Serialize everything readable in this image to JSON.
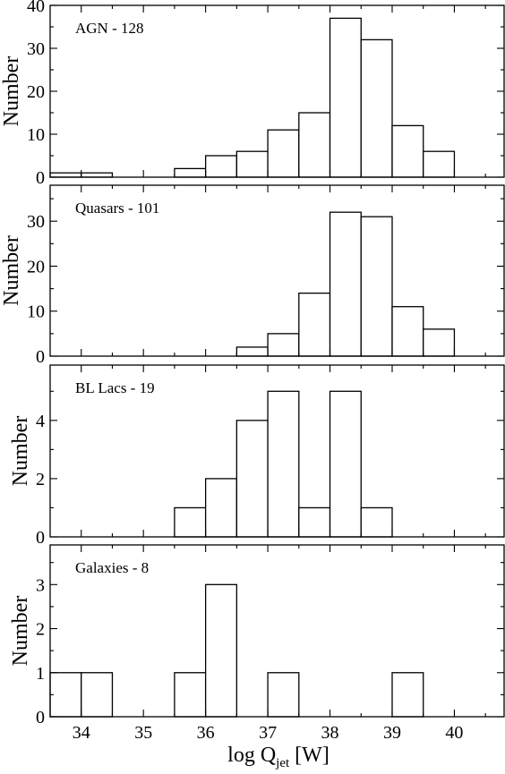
{
  "chart_data": [
    {
      "type": "bar",
      "annotation": "AGN - 128",
      "ylabel": "Number",
      "xlim": [
        33.5,
        40.8
      ],
      "ylim": [
        0,
        40
      ],
      "yticks": [
        0,
        10,
        20,
        30,
        40
      ],
      "bin_width": 0.5,
      "bins": [
        {
          "x0": 33.5,
          "value": 1
        },
        {
          "x0": 34.0,
          "value": 1
        },
        {
          "x0": 35.5,
          "value": 2
        },
        {
          "x0": 36.0,
          "value": 5
        },
        {
          "x0": 36.5,
          "value": 6
        },
        {
          "x0": 37.0,
          "value": 11
        },
        {
          "x0": 37.5,
          "value": 15
        },
        {
          "x0": 38.0,
          "value": 37
        },
        {
          "x0": 38.5,
          "value": 32
        },
        {
          "x0": 39.0,
          "value": 12
        },
        {
          "x0": 39.5,
          "value": 6
        }
      ]
    },
    {
      "type": "bar",
      "annotation": "Quasars - 101",
      "ylabel": "Number",
      "xlim": [
        33.5,
        40.8
      ],
      "ylim": [
        0,
        38
      ],
      "yticks": [
        0,
        10,
        20,
        30
      ],
      "bin_width": 0.5,
      "bins": [
        {
          "x0": 36.5,
          "value": 2
        },
        {
          "x0": 37.0,
          "value": 5
        },
        {
          "x0": 37.5,
          "value": 14
        },
        {
          "x0": 38.0,
          "value": 32
        },
        {
          "x0": 38.5,
          "value": 31
        },
        {
          "x0": 39.0,
          "value": 11
        },
        {
          "x0": 39.5,
          "value": 6
        }
      ]
    },
    {
      "type": "bar",
      "annotation": "BL Lacs - 19",
      "ylabel": "Number",
      "xlim": [
        33.5,
        40.8
      ],
      "ylim": [
        0,
        5.9
      ],
      "yticks": [
        0,
        2,
        4
      ],
      "bin_width": 0.5,
      "bins": [
        {
          "x0": 35.5,
          "value": 1
        },
        {
          "x0": 36.0,
          "value": 2
        },
        {
          "x0": 36.5,
          "value": 4
        },
        {
          "x0": 37.0,
          "value": 5
        },
        {
          "x0": 37.5,
          "value": 1
        },
        {
          "x0": 38.0,
          "value": 5
        },
        {
          "x0": 38.5,
          "value": 1
        }
      ]
    },
    {
      "type": "bar",
      "annotation": "Galaxies - 8",
      "ylabel": "Number",
      "xlabel": "log Q",
      "xlabel_sub": "jet",
      "xlabel_unit": " [W]",
      "xlim": [
        33.5,
        40.8
      ],
      "ylim": [
        0,
        3.9
      ],
      "yticks": [
        0,
        1,
        2,
        3
      ],
      "xticks": [
        34,
        35,
        36,
        37,
        38,
        39,
        40
      ],
      "bin_width": 0.5,
      "bins": [
        {
          "x0": 33.5,
          "value": 1
        },
        {
          "x0": 34.0,
          "value": 1
        },
        {
          "x0": 35.5,
          "value": 1
        },
        {
          "x0": 36.0,
          "value": 3
        },
        {
          "x0": 37.0,
          "value": 1
        },
        {
          "x0": 39.0,
          "value": 1
        }
      ]
    }
  ]
}
